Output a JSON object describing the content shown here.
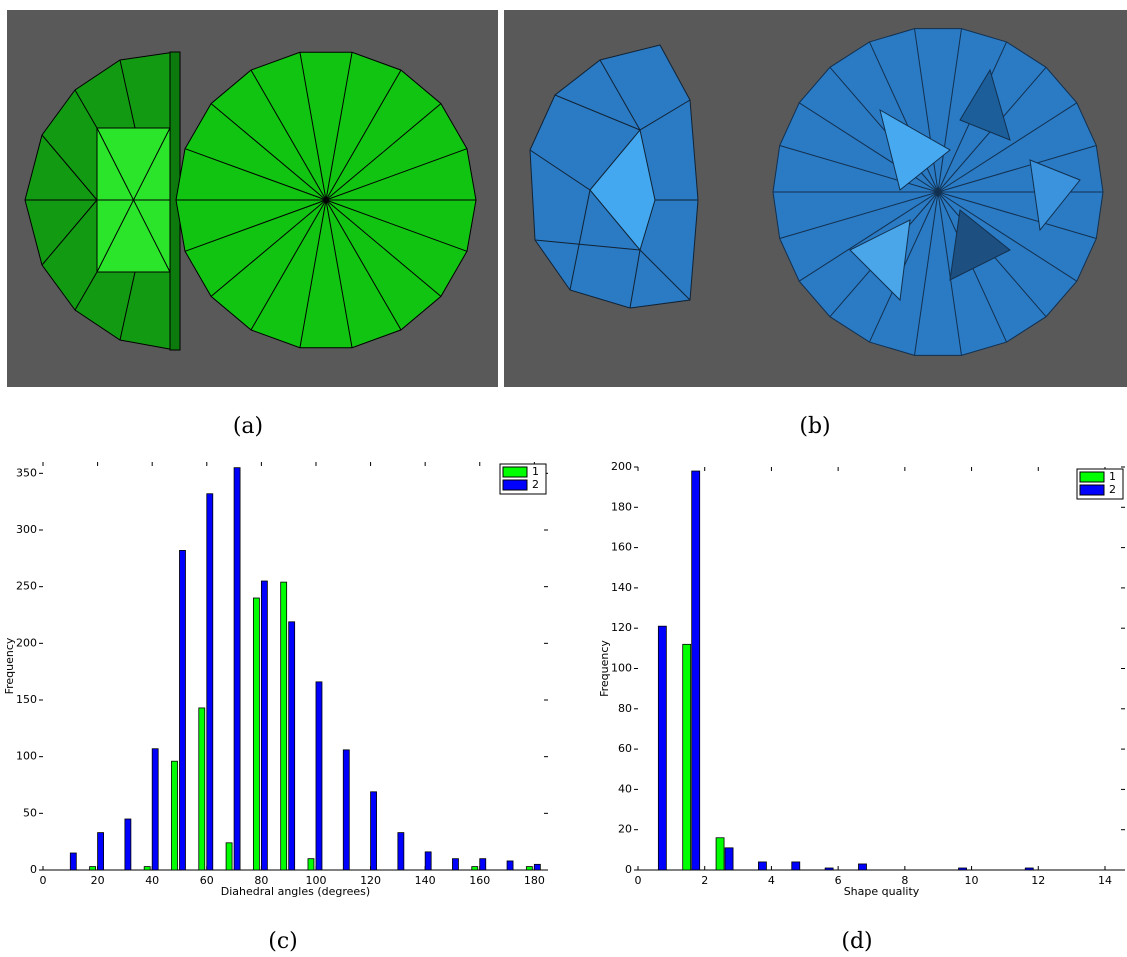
{
  "captions": [
    "(a)",
    "(b)",
    "(c)",
    "(d)"
  ],
  "chart_data": [
    {
      "type": "bar",
      "xlabel": "Diahedral angles (degrees)",
      "ylabel": "Frequency",
      "x": [
        10,
        20,
        30,
        40,
        50,
        60,
        70,
        80,
        90,
        100,
        110,
        120,
        130,
        140,
        150,
        160,
        170,
        180
      ],
      "series": [
        {
          "name": "1",
          "color": "#00ff00",
          "values": [
            0,
            3,
            0,
            3,
            96,
            143,
            24,
            240,
            254,
            10,
            0,
            0,
            0,
            0,
            0,
            3,
            0,
            3
          ]
        },
        {
          "name": "2",
          "color": "#0000ff",
          "values": [
            15,
            33,
            45,
            107,
            282,
            332,
            355,
            255,
            219,
            166,
            106,
            69,
            33,
            16,
            10,
            10,
            8,
            5
          ]
        }
      ],
      "xlim": [
        0,
        185
      ],
      "xticks": [
        0,
        20,
        40,
        60,
        80,
        100,
        120,
        140,
        160,
        180
      ],
      "ylim": [
        0,
        360
      ],
      "yticks": [
        0,
        50,
        100,
        150,
        200,
        250,
        300,
        350
      ],
      "legend": "upper right"
    },
    {
      "type": "bar",
      "xlabel": "Shape quality",
      "ylabel": "Frequency",
      "x": [
        0.7,
        1.7,
        2.7,
        3.7,
        4.7,
        5.7,
        6.7,
        7.7,
        8.7,
        9.7,
        10.7,
        11.7
      ],
      "series": [
        {
          "name": "1",
          "color": "#00ff00",
          "values": [
            0,
            112,
            16,
            0,
            0,
            0,
            0,
            0,
            0,
            0,
            0,
            0
          ]
        },
        {
          "name": "2",
          "color": "#0000ff",
          "values": [
            121,
            198,
            11,
            4,
            4,
            1,
            3,
            0,
            0,
            1,
            0,
            1
          ]
        }
      ],
      "xlim": [
        0,
        14.6
      ],
      "xticks": [
        0,
        2,
        4,
        6,
        8,
        10,
        12,
        14
      ],
      "ylim": [
        0,
        200
      ],
      "yticks": [
        0,
        20,
        40,
        60,
        80,
        100,
        120,
        140,
        160,
        180,
        200
      ],
      "legend": "upper right"
    }
  ]
}
